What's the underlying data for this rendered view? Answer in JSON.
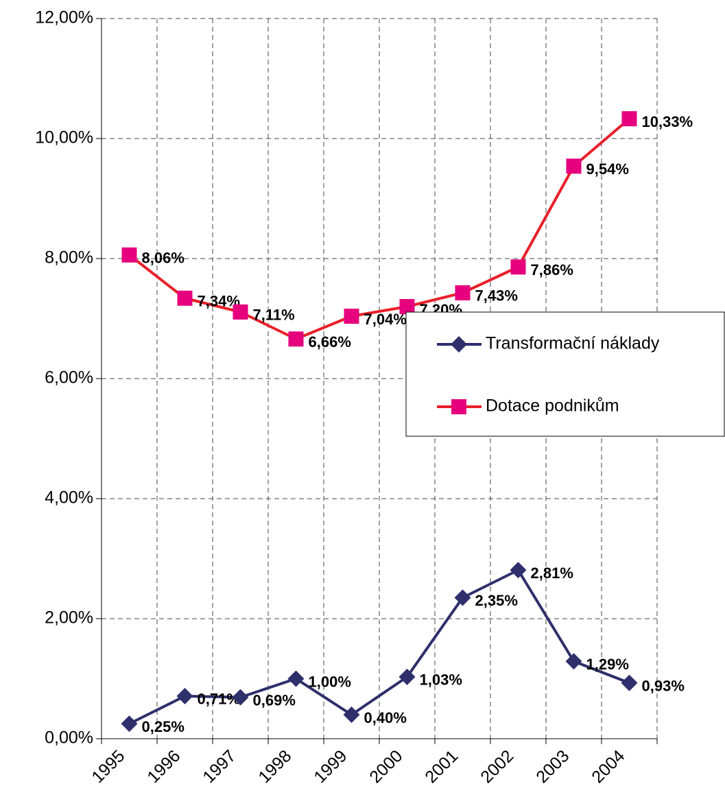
{
  "chart_data": {
    "type": "line",
    "categories": [
      "1995",
      "1996",
      "1997",
      "1998",
      "1999",
      "2000",
      "2001",
      "2002",
      "2003",
      "2004"
    ],
    "series": [
      {
        "name": "Transformační náklady",
        "color": "#2e2f6b",
        "marker": "diamond",
        "values": [
          0.25,
          0.71,
          0.69,
          1.0,
          0.4,
          1.03,
          2.35,
          2.81,
          1.29,
          0.93
        ],
        "value_labels": [
          "0,25%",
          "0,71%",
          "0,69%",
          "1,00%",
          "0,40%",
          "1,03%",
          "2,35%",
          "2,81%",
          "1,29%",
          "0,93%"
        ]
      },
      {
        "name": "Dotace podnikům",
        "color": "#e8202a",
        "marker_color": "#e6007e",
        "marker": "square",
        "values": [
          8.06,
          7.34,
          7.11,
          6.66,
          7.04,
          7.2,
          7.43,
          7.86,
          9.54,
          10.33
        ],
        "value_labels": [
          "8,06%",
          "7,34%",
          "7,11%",
          "6,66%",
          "7,04%",
          "7,20%",
          "7,43%",
          "7,86%",
          "9,54%",
          "10,33%"
        ]
      }
    ],
    "ylim": [
      0,
      12
    ],
    "yticks": [
      {
        "value": 0,
        "label": "0,00%"
      },
      {
        "value": 2,
        "label": "2,00%"
      },
      {
        "value": 4,
        "label": "4,00%"
      },
      {
        "value": 6,
        "label": "6,00%"
      },
      {
        "value": 8,
        "label": "8,00%"
      },
      {
        "value": 10,
        "label": "10,00%"
      },
      {
        "value": 12,
        "label": "12,00%"
      }
    ],
    "grid": true,
    "legend": "right"
  }
}
